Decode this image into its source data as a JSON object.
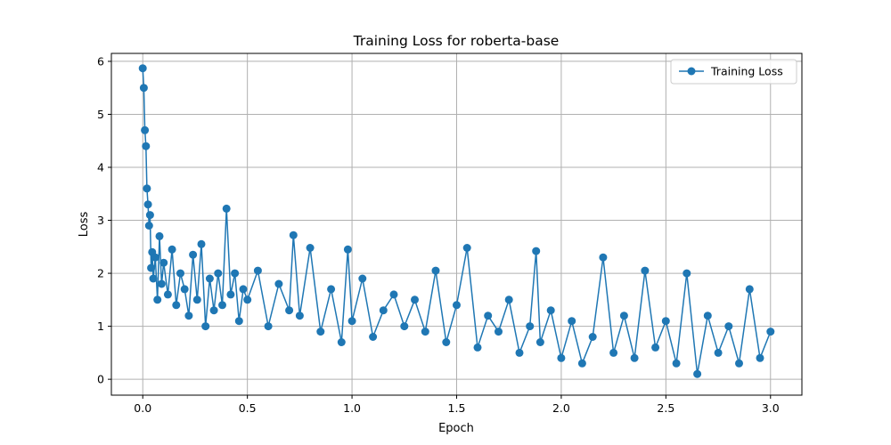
{
  "chart_data": {
    "type": "line",
    "title": "Training Loss for roberta-base",
    "xlabel": "Epoch",
    "ylabel": "Loss",
    "xlim": [
      -0.15,
      3.15
    ],
    "ylim": [
      -0.3,
      6.15
    ],
    "xticks": [
      0.0,
      0.5,
      1.0,
      1.5,
      2.0,
      2.5,
      3.0
    ],
    "xtick_labels": [
      "0.0",
      "0.5",
      "1.0",
      "1.5",
      "2.0",
      "2.5",
      "3.0"
    ],
    "yticks": [
      0,
      1,
      2,
      3,
      4,
      5,
      6
    ],
    "ytick_labels": [
      "0",
      "1",
      "2",
      "3",
      "4",
      "5",
      "6"
    ],
    "grid": true,
    "legend": {
      "position": "top-right",
      "entries": [
        "Training Loss"
      ]
    },
    "colors": {
      "series": "#1f77b4"
    },
    "series": [
      {
        "name": "Training Loss",
        "x": [
          0.0,
          0.005,
          0.01,
          0.015,
          0.02,
          0.025,
          0.03,
          0.035,
          0.04,
          0.045,
          0.05,
          0.06,
          0.07,
          0.08,
          0.09,
          0.1,
          0.12,
          0.14,
          0.16,
          0.18,
          0.2,
          0.22,
          0.24,
          0.26,
          0.28,
          0.3,
          0.32,
          0.34,
          0.36,
          0.38,
          0.4,
          0.42,
          0.44,
          0.46,
          0.48,
          0.5,
          0.55,
          0.6,
          0.65,
          0.7,
          0.72,
          0.75,
          0.8,
          0.85,
          0.9,
          0.95,
          0.98,
          1.0,
          1.05,
          1.1,
          1.15,
          1.2,
          1.25,
          1.3,
          1.35,
          1.4,
          1.45,
          1.5,
          1.55,
          1.6,
          1.65,
          1.7,
          1.75,
          1.8,
          1.85,
          1.88,
          1.9,
          1.95,
          2.0,
          2.05,
          2.1,
          2.15,
          2.2,
          2.25,
          2.3,
          2.35,
          2.4,
          2.45,
          2.5,
          2.55,
          2.6,
          2.65,
          2.7,
          2.75,
          2.8,
          2.85,
          2.9,
          2.95,
          3.0
        ],
        "values": [
          5.87,
          5.5,
          4.7,
          4.4,
          3.6,
          3.3,
          2.9,
          3.1,
          2.1,
          2.4,
          1.9,
          2.3,
          1.5,
          2.7,
          1.8,
          2.2,
          1.6,
          2.45,
          1.4,
          2.0,
          1.7,
          1.2,
          2.35,
          1.5,
          2.55,
          1.0,
          1.9,
          1.3,
          2.0,
          1.4,
          3.22,
          1.6,
          2.0,
          1.1,
          1.7,
          1.5,
          2.05,
          1.0,
          1.8,
          1.3,
          2.72,
          1.2,
          2.48,
          0.9,
          1.7,
          0.7,
          2.45,
          1.1,
          1.9,
          0.8,
          1.3,
          1.6,
          1.0,
          1.5,
          0.9,
          2.05,
          0.7,
          1.4,
          2.48,
          0.6,
          1.2,
          0.9,
          1.5,
          0.5,
          1.0,
          2.42,
          0.7,
          1.3,
          0.4,
          1.1,
          0.3,
          0.8,
          2.3,
          0.5,
          1.2,
          0.4,
          2.05,
          0.6,
          1.1,
          0.3,
          2.0,
          0.1,
          1.2,
          0.5,
          1.0,
          0.3,
          1.7,
          0.4,
          0.9
        ]
      }
    ]
  }
}
